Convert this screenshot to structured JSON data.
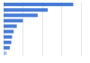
{
  "chart_data": {
    "type": "bar",
    "orientation": "horizontal",
    "categories": [
      null,
      null,
      null,
      null,
      null,
      null,
      null,
      null,
      null,
      null
    ],
    "values": [
      90,
      57,
      44,
      25,
      17,
      13,
      11,
      10,
      8,
      4
    ],
    "colors": [
      "#4a7ed6",
      "#4a7ed6",
      "#4a7ed6",
      "#4a7ed6",
      "#4a7ed6",
      "#4a7ed6",
      "#4a7ed6",
      "#4a7ed6",
      "#4a7ed6",
      "#a9c4ee"
    ],
    "xlim": [
      0,
      100
    ],
    "xticks": [
      0,
      25,
      50,
      75,
      100
    ],
    "grid": true,
    "tick_labels": false
  }
}
